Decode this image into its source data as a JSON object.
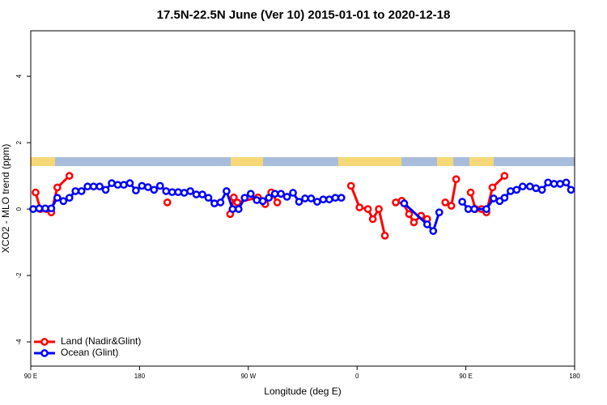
{
  "chart_data": {
    "type": "line",
    "title": "17.5N-22.5N June (Ver 10)   2015-01-01 to 2020-12-18",
    "xlabel": "Longitude (deg E)",
    "ylabel": "XCO2 - MLO trend (ppm)",
    "xlim": [
      90,
      540
    ],
    "ylim": [
      -4.73,
      5.37
    ],
    "xticks": [
      {
        "value": 90,
        "label": "90 E"
      },
      180,
      {
        "value": 270,
        "label": "90 W"
      },
      {
        "value": 360,
        "label": "0"
      },
      {
        "value": 450,
        "label": "90 E"
      },
      {
        "value": 540,
        "label": "180"
      }
    ],
    "yticks": [
      -4,
      -2,
      0,
      2,
      4
    ],
    "legend": "bottom-left",
    "series": [
      {
        "name": "Land (Nadir&Glint)",
        "color": "#ff0000",
        "x": [
          94,
          98,
          103,
          107,
          112,
          122,
          160,
          203,
          230,
          255,
          258,
          261,
          278,
          284,
          289,
          294,
          320,
          355,
          362,
          369,
          373,
          378,
          383,
          388,
          392,
          397,
          403,
          407,
          413,
          418,
          425,
          433,
          438,
          442,
          448,
          454,
          458,
          463,
          467,
          472,
          482
        ],
        "values": [
          0.5,
          0,
          0,
          -0.1,
          0.65,
          1.0,
          null,
          0.2,
          null,
          -0.15,
          0.35,
          0.2,
          0.35,
          0.15,
          0.5,
          0.2,
          null,
          0.7,
          0.05,
          0,
          -0.3,
          0,
          -0.8,
          null,
          0.2,
          0.25,
          -0.15,
          -0.4,
          -0.2,
          -0.3,
          null,
          0.2,
          0.1,
          0.9,
          null,
          0.5,
          0,
          0,
          -0.1,
          0.65,
          1.0
        ]
      },
      {
        "name": "Ocean (Glint)",
        "color": "#0000ff",
        "x": [
          92,
          97,
          102,
          107,
          112,
          117,
          122,
          127,
          132,
          137,
          142,
          147,
          152,
          157,
          162,
          167,
          172,
          177,
          182,
          187,
          192,
          197,
          202,
          207,
          212,
          217,
          222,
          227,
          232,
          237,
          242,
          247,
          252,
          257,
          262,
          267,
          272,
          277,
          282,
          287,
          292,
          297,
          302,
          307,
          312,
          317,
          322,
          327,
          332,
          337,
          342,
          347,
          352,
          399,
          418,
          423,
          428,
          435,
          447,
          452,
          457,
          467,
          473,
          478,
          482,
          487,
          492,
          497,
          503,
          508,
          513,
          518,
          523,
          528,
          533,
          537
        ],
        "values": [
          0,
          0.02,
          0.02,
          0.02,
          0.34,
          0.24,
          0.34,
          0.54,
          0.54,
          0.68,
          0.68,
          0.68,
          0.58,
          0.78,
          0.73,
          0.73,
          0.78,
          0.56,
          0.7,
          0.66,
          0.58,
          0.7,
          0.54,
          0.51,
          0.51,
          0.49,
          0.54,
          0.44,
          0.44,
          0.34,
          0.17,
          0.2,
          0.54,
          0,
          0,
          0.34,
          0.46,
          0.27,
          0.24,
          0.34,
          0.46,
          0.46,
          0.37,
          0.49,
          0.22,
          0.32,
          0.32,
          0.22,
          0.29,
          0.29,
          0.34,
          0.34,
          null,
          0.17,
          -0.46,
          -0.66,
          -0.1,
          null,
          0.22,
          0,
          0,
          0,
          0.32,
          0.24,
          0.34,
          0.54,
          0.58,
          0.68,
          0.68,
          0.63,
          0.58,
          0.8,
          0.76,
          0.76,
          0.8,
          0.58
        ]
      }
    ]
  }
}
